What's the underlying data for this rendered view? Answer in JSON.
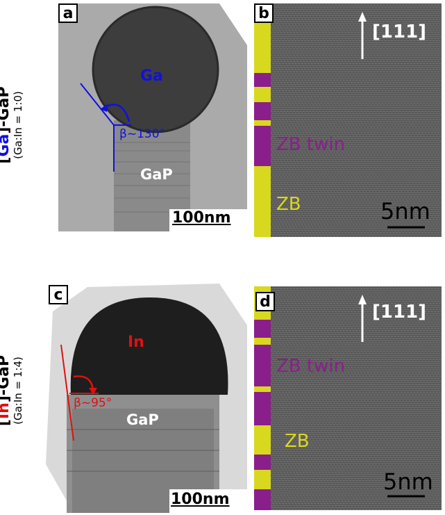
{
  "row_a": {
    "title_bracket_open": "[",
    "title_metal": "Ga",
    "title_rest": "]-GaP",
    "subtitle": "(Ga:In = 1:0)"
  },
  "row_c": {
    "title_bracket_open": "[",
    "title_metal": "In",
    "title_rest": "]-GaP",
    "subtitle": "(Ga:In = 1:4)"
  },
  "panel_a": {
    "label": "a",
    "droplet_label": "Ga",
    "wire_label": "GaP",
    "angle_label": "β~130°",
    "scalebar_text": "100nm"
  },
  "panel_b": {
    "label": "b",
    "direction_label": "[111]",
    "twin_label": "ZB twin",
    "zb_label": "ZB",
    "scalebar_text": "5nm"
  },
  "panel_c": {
    "label": "c",
    "droplet_label": "In",
    "wire_label": "GaP",
    "angle_label": "β~95°",
    "scalebar_text": "100nm"
  },
  "panel_d": {
    "label": "d",
    "direction_label": "[111]",
    "twin_label": "ZB twin",
    "zb_label": "ZB",
    "scalebar_text": "5nm"
  },
  "colors": {
    "ga_blue": "#1010e0",
    "in_red": "#e01010",
    "zb_yellow": "#d8d81e",
    "twin_purple": "#8a1e8a"
  }
}
